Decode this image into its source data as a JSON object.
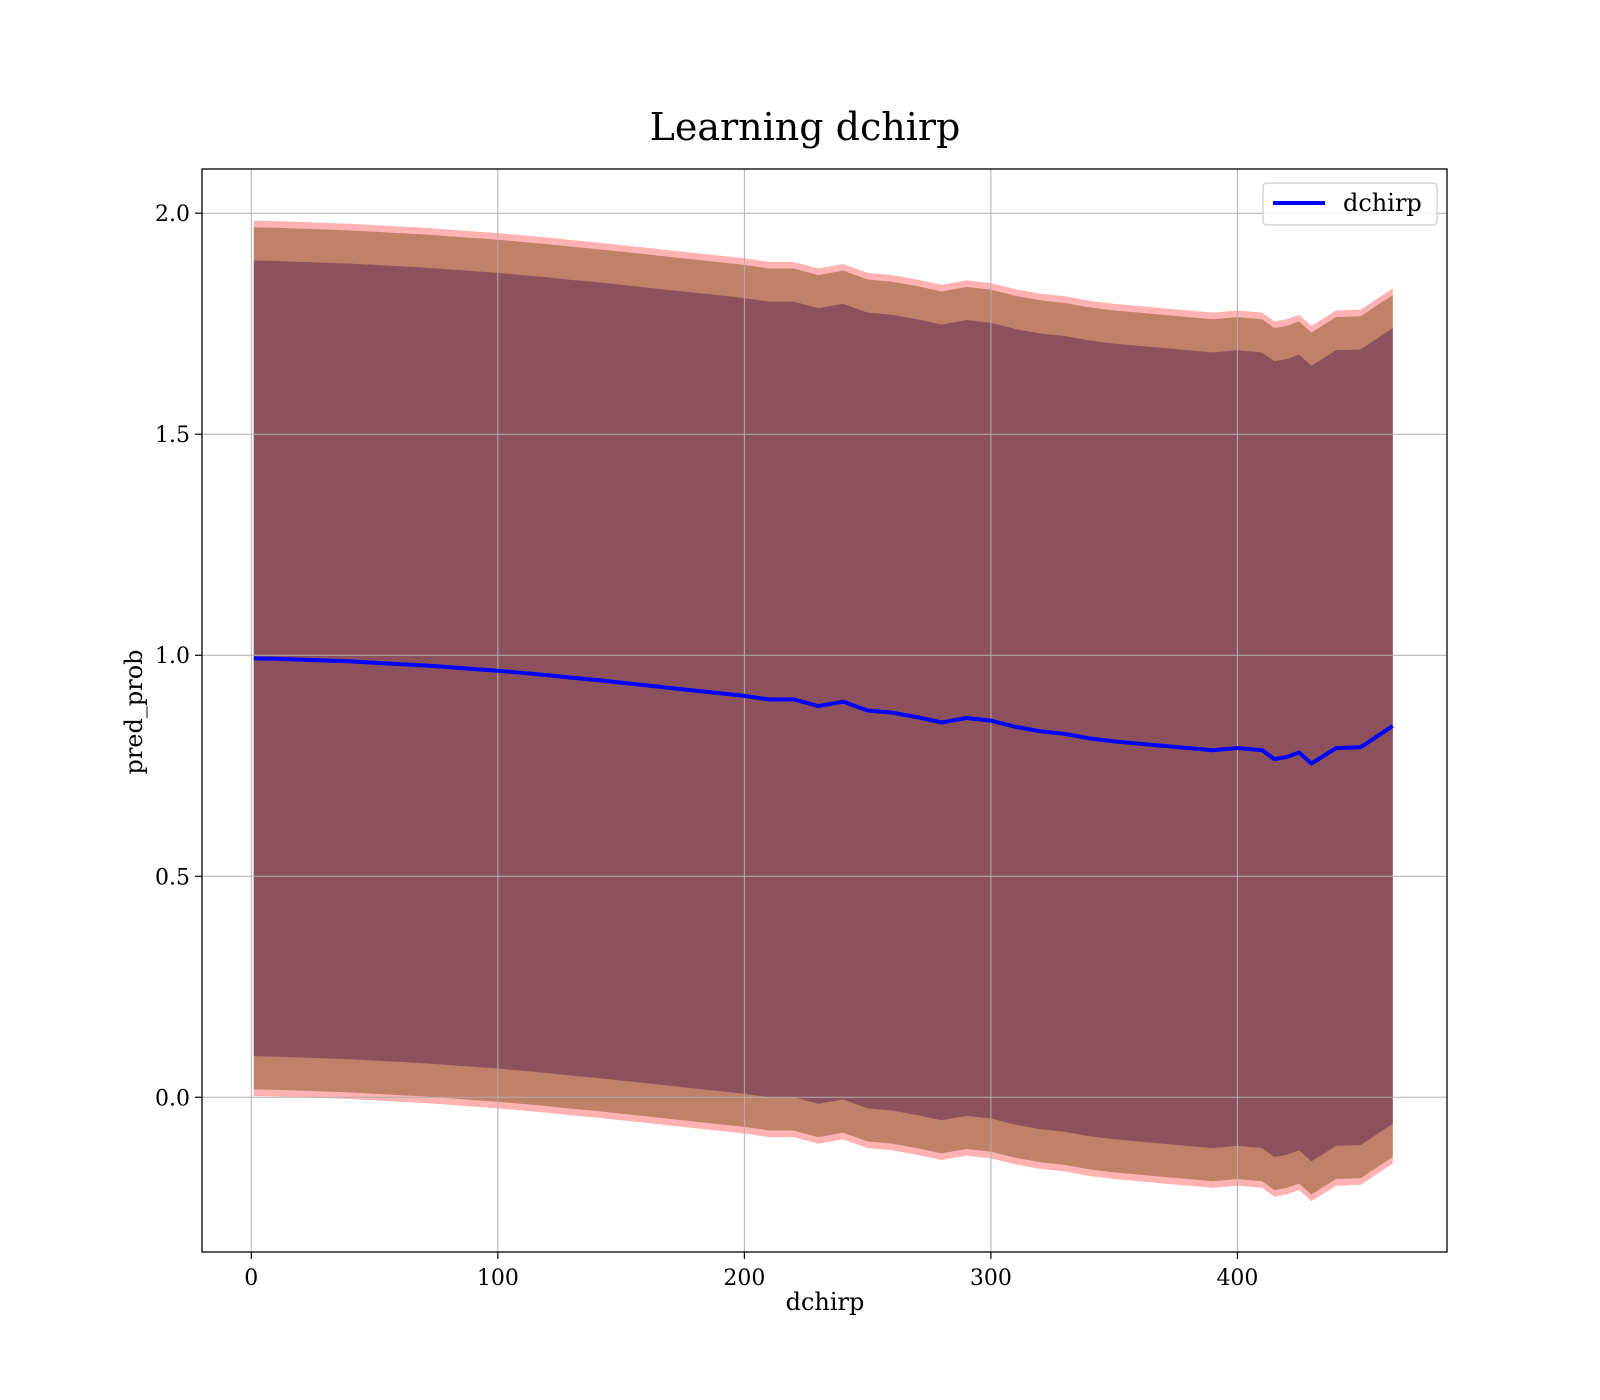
{
  "chart_data": {
    "type": "line",
    "title": "Learning dchirp",
    "xlabel": "dchirp",
    "ylabel": "pred_prob",
    "xlim": [
      -20,
      485
    ],
    "ylim": [
      -0.35,
      2.1
    ],
    "xticks": [
      0,
      100,
      200,
      300,
      400
    ],
    "yticks": [
      0.0,
      0.5,
      1.0,
      1.5,
      2.0
    ],
    "xtick_labels": [
      "0",
      "100",
      "200",
      "300",
      "400"
    ],
    "ytick_labels": [
      "0.0",
      "0.5",
      "1.0",
      "1.5",
      "2.0"
    ],
    "grid": true,
    "legend_position": "top-right",
    "series": [
      {
        "name": "dchirp",
        "color": "#0000ff",
        "x": [
          1,
          10,
          20,
          30,
          40,
          50,
          60,
          70,
          80,
          90,
          100,
          110,
          120,
          130,
          140,
          150,
          160,
          170,
          180,
          190,
          200,
          210,
          220,
          230,
          240,
          250,
          260,
          270,
          280,
          290,
          300,
          310,
          320,
          330,
          340,
          350,
          360,
          370,
          380,
          390,
          400,
          410,
          415,
          420,
          425,
          430,
          440,
          450,
          463
        ],
        "y": [
          0.993,
          0.992,
          0.99,
          0.988,
          0.986,
          0.983,
          0.98,
          0.977,
          0.973,
          0.969,
          0.965,
          0.96,
          0.955,
          0.949,
          0.944,
          0.938,
          0.932,
          0.926,
          0.92,
          0.914,
          0.908,
          0.9,
          0.9,
          0.885,
          0.895,
          0.875,
          0.87,
          0.86,
          0.848,
          0.858,
          0.852,
          0.838,
          0.828,
          0.822,
          0.812,
          0.805,
          0.8,
          0.795,
          0.79,
          0.785,
          0.79,
          0.785,
          0.765,
          0.77,
          0.78,
          0.755,
          0.79,
          0.792,
          0.84
        ]
      }
    ],
    "bands": [
      {
        "color": "#ff0000",
        "opacity": 0.3,
        "upper_offset": 0.99,
        "lower_offset": -0.99
      },
      {
        "color": "#8b5a2b",
        "opacity": 0.55,
        "upper_offset": 0.975,
        "lower_offset": -0.975
      },
      {
        "color": "#7a3f5a",
        "opacity": 0.72,
        "upper_offset": 0.9,
        "lower_offset": -0.9
      }
    ]
  }
}
